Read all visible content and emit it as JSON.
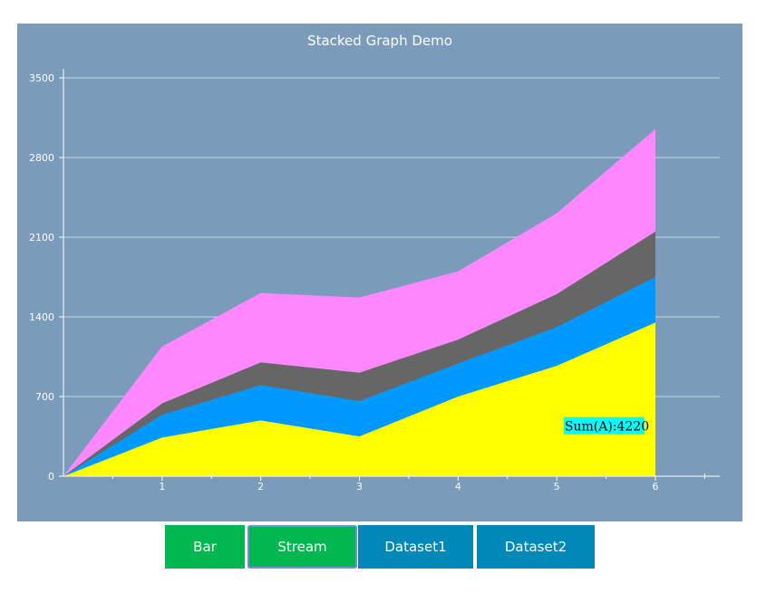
{
  "chart_data": {
    "type": "area",
    "title": "Stacked Graph Demo",
    "x": [
      0,
      1,
      2,
      3,
      4,
      5,
      6
    ],
    "xticks": [
      "1",
      "2",
      "3",
      "4",
      "5",
      "6"
    ],
    "yticks": [
      "0",
      "700",
      "1400",
      "2100",
      "2800",
      "3500"
    ],
    "ylim": [
      0,
      3500
    ],
    "xlim": [
      0.5,
      7.1
    ],
    "stacked": true,
    "grid": true,
    "series": [
      {
        "values": [
          0,
          340,
          490,
          350,
          700,
          970,
          1350
        ],
        "color": "#ffff00"
      },
      {
        "values": [
          0,
          200,
          310,
          310,
          290,
          340,
          400
        ],
        "color": "#0099ff"
      },
      {
        "values": [
          0,
          100,
          200,
          250,
          210,
          290,
          400
        ],
        "color": "#666666"
      },
      {
        "values": [
          0,
          500,
          610,
          660,
          600,
          710,
          900
        ],
        "color": "#ff88ff"
      }
    ],
    "annotation": {
      "text": "Sum(A):4220",
      "x": 5.08,
      "y": 440,
      "background": "#00ffff"
    }
  },
  "buttons": [
    {
      "label": "Bar",
      "style": "green",
      "active": false
    },
    {
      "label": "Stream",
      "style": "green",
      "active": true
    },
    {
      "label": "Dataset1",
      "style": "blue",
      "active": false
    },
    {
      "label": "Dataset2",
      "style": "blue",
      "active": false
    }
  ],
  "colors": {
    "panel_background": "#7b9bbb",
    "gridline": "#c8d4e0",
    "axis": "#ffffff"
  }
}
